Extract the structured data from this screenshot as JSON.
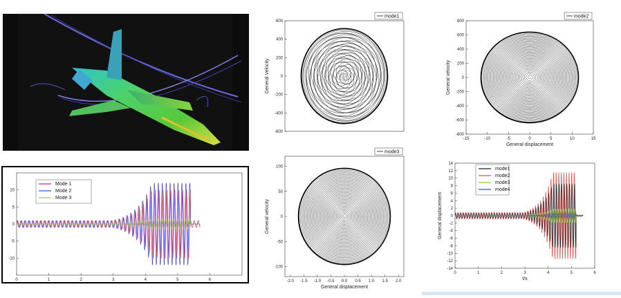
{
  "colors": {
    "mode1": "#c0305a",
    "mode2": "#4a4ad8",
    "mode3": "#8fd23c",
    "mode4": "#3a52c8",
    "red_mode2": "#e85050"
  },
  "chart_data": [
    {
      "id": "cfd",
      "type": "image",
      "title": ""
    },
    {
      "id": "phase1",
      "type": "line",
      "legend": [
        "mode1"
      ],
      "legend_position": "top-right",
      "ylabel": "General Velocity",
      "xlabel": "",
      "xlim": [
        -2.2,
        2.2
      ],
      "ylim": [
        -600,
        600
      ],
      "x_ticks": [],
      "y_ticks": [
        "600",
        "400",
        "200",
        "0",
        "-200",
        "-400",
        "-600"
      ],
      "series": [
        {
          "name": "mode1",
          "x_amp": 1.6,
          "y_amp": 515,
          "x_center": 0.0,
          "y_center": 0
        }
      ]
    },
    {
      "id": "phase2",
      "type": "line",
      "legend": [
        "mode2"
      ],
      "legend_position": "top-right",
      "ylabel": "General velocity",
      "xlabel": "General displacement",
      "xlim": [
        -15,
        15
      ],
      "ylim": [
        -800,
        800
      ],
      "x_ticks": [
        "-15",
        "-10",
        "-5",
        "0",
        "5",
        "10",
        "15"
      ],
      "y_ticks": [
        "800",
        "600",
        "400",
        "200",
        "0",
        "-200",
        "-400",
        "-600",
        "-800"
      ],
      "series": [
        {
          "name": "mode2",
          "x_amp": 11.5,
          "y_amp": 640,
          "x_center": 0,
          "y_center": 0
        }
      ]
    },
    {
      "id": "time1",
      "type": "line",
      "legend": [
        "Mode 1",
        "Mode 2",
        "Mode 3"
      ],
      "legend_position": "top-left",
      "xlim": [
        0,
        7
      ],
      "ylim": [
        -15,
        15
      ],
      "x_ticks": [
        "0",
        "1",
        "2",
        "3",
        "4",
        "5",
        "6"
      ],
      "y_ticks": [
        "10",
        "5",
        "0",
        "-5",
        "-10"
      ],
      "t_end": 5.4,
      "series": [
        {
          "name": "Mode 1",
          "max_amp": 10
        },
        {
          "name": "Mode 2",
          "max_amp": 12
        },
        {
          "name": "Mode 3",
          "max_amp": 1.5
        }
      ]
    },
    {
      "id": "phase3",
      "type": "line",
      "legend": [
        "mode3"
      ],
      "legend_position": "top-right",
      "ylabel": "General velocity",
      "xlabel": "General displacement",
      "xlim": [
        -2.2,
        2.2
      ],
      "ylim": [
        -120,
        120
      ],
      "x_ticks": [
        "-2.0",
        "-1.5",
        "-1.0",
        "-0.5",
        "0.0",
        "0.5",
        "1.0",
        "1.5",
        "2.0"
      ],
      "y_ticks": [
        "100",
        "50",
        "0",
        "-50",
        "-100"
      ],
      "series": [
        {
          "name": "mode3",
          "x_amp": 1.7,
          "y_amp": 96,
          "x_center": 0,
          "y_center": 0
        }
      ]
    },
    {
      "id": "time2",
      "type": "line",
      "legend": [
        "mode1",
        "mode2",
        "mode3",
        "mode4"
      ],
      "legend_position": "top-left",
      "ylabel": "General displacement",
      "xlabel": "t/s",
      "xlim": [
        0,
        6
      ],
      "ylim": [
        -14,
        14
      ],
      "x_ticks": [
        "0",
        "1",
        "2",
        "3",
        "4",
        "5",
        "6"
      ],
      "y_ticks": [
        "14",
        "12",
        "10",
        "8",
        "6",
        "4",
        "2",
        "0",
        "-2",
        "-4",
        "-6",
        "-8",
        "-10",
        "-12",
        "-14"
      ],
      "t_end": 5.2,
      "series": [
        {
          "name": "mode1",
          "max_amp": 8.5
        },
        {
          "name": "mode2",
          "max_amp": 11.5
        },
        {
          "name": "mode3",
          "max_amp": 1.8
        },
        {
          "name": "mode4",
          "max_amp": 0.4
        }
      ]
    }
  ]
}
